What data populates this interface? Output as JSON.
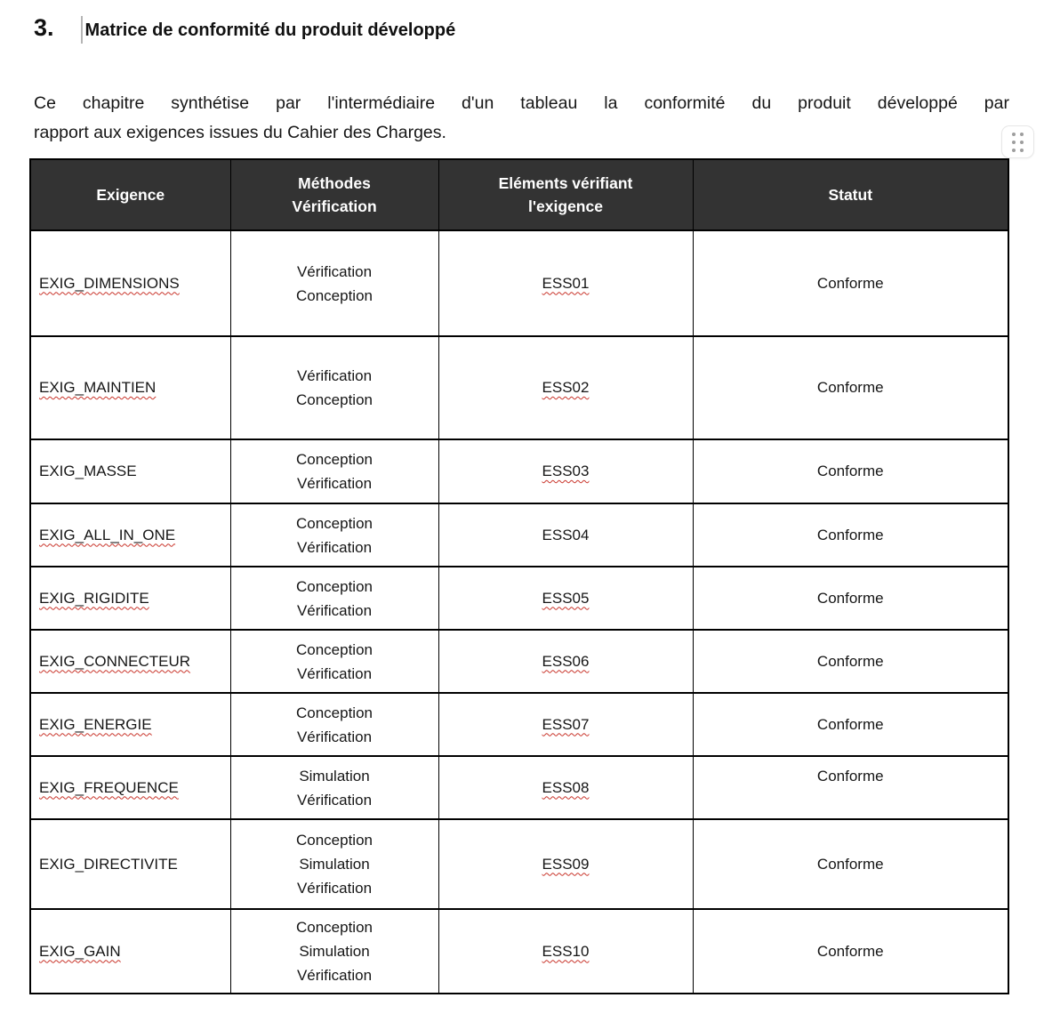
{
  "doc": {
    "heading": {
      "number": "3.",
      "title": "Matrice de conformité du produit développé"
    },
    "intro": {
      "line1": "Ce chapitre synthétise par l'intermédiaire d'un tableau la conformité du produit développé par",
      "line2": "rapport aux exigences issues du Cahier des Charges."
    }
  },
  "colors": {
    "header_bg": "#333333",
    "header_text": "#ffffff",
    "table_border": "#000000",
    "spellcheck_underline": "#c9342a"
  },
  "icons": {
    "drag_handle": "grid-dots-icon"
  },
  "table": {
    "headers": [
      "Exigence",
      "Méthodes\nVérification",
      "Eléments vérifiant\nl'exigence",
      "Statut"
    ],
    "rows": [
      {
        "exigence": "EXIG_DIMENSIONS",
        "exigence_spellcheck": true,
        "methodes": [
          "Vérification",
          "Conception"
        ],
        "element": "ESS01",
        "element_spellcheck": true,
        "statut": "Conforme",
        "statut_top": false
      },
      {
        "exigence": "EXIG_MAINTIEN",
        "exigence_spellcheck": true,
        "methodes": [
          "Vérification",
          "Conception"
        ],
        "element": "ESS02",
        "element_spellcheck": true,
        "statut": "Conforme",
        "statut_top": false
      },
      {
        "exigence": "EXIG_MASSE",
        "exigence_spellcheck": false,
        "methodes": [
          "Conception",
          "Vérification"
        ],
        "element": "ESS03",
        "element_spellcheck": true,
        "statut": "Conforme",
        "statut_top": false
      },
      {
        "exigence": "EXIG_ALL_IN_ONE",
        "exigence_spellcheck": true,
        "methodes": [
          "Conception",
          "Vérification"
        ],
        "element": "ESS04",
        "element_spellcheck": false,
        "statut": "Conforme",
        "statut_top": false
      },
      {
        "exigence": "EXIG_RIGIDITE",
        "exigence_spellcheck": true,
        "methodes": [
          "Conception",
          "Vérification"
        ],
        "element": "ESS05",
        "element_spellcheck": true,
        "statut": "Conforme",
        "statut_top": false
      },
      {
        "exigence": "EXIG_CONNECTEUR",
        "exigence_spellcheck": true,
        "methodes": [
          "Conception",
          "Vérification"
        ],
        "element": "ESS06",
        "element_spellcheck": true,
        "statut": "Conforme",
        "statut_top": false
      },
      {
        "exigence": "EXIG_ENERGIE",
        "exigence_spellcheck": true,
        "methodes": [
          "Conception",
          "Vérification"
        ],
        "element": "ESS07",
        "element_spellcheck": true,
        "statut": "Conforme",
        "statut_top": false
      },
      {
        "exigence": "EXIG_FREQUENCE",
        "exigence_spellcheck": true,
        "methodes": [
          "Simulation",
          "Vérification"
        ],
        "element": "ESS08",
        "element_spellcheck": true,
        "statut": "Conforme",
        "statut_top": true
      },
      {
        "exigence": "EXIG_DIRECTIVITE",
        "exigence_spellcheck": false,
        "methodes": [
          "Conception",
          "Simulation",
          "Vérification"
        ],
        "element": "ESS09",
        "element_spellcheck": true,
        "statut": "Conforme",
        "statut_top": false
      },
      {
        "exigence": "EXIG_GAIN",
        "exigence_spellcheck": true,
        "methodes": [
          "Conception",
          "Simulation",
          "Vérification"
        ],
        "element": "ESS10",
        "element_spellcheck": true,
        "statut": "Conforme",
        "statut_top": false
      }
    ]
  }
}
